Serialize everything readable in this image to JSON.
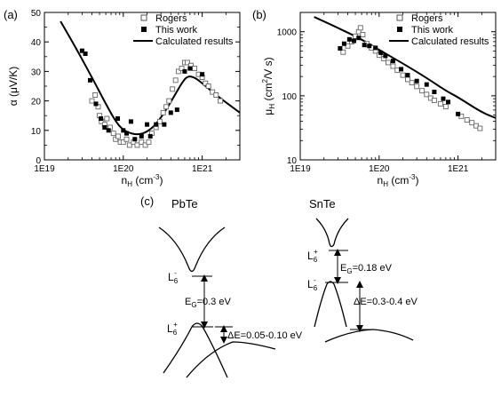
{
  "panel_labels": {
    "a": "(a)",
    "b": "(b)",
    "c": "(c)"
  },
  "legend": {
    "rogers": "Rogers",
    "this_work": "This work",
    "calculated": "Calculated results"
  },
  "chart_data": [
    {
      "panel": "(a)",
      "type": "scatter",
      "xscale": "log",
      "xlim": [
        1e+19,
        3e+21
      ],
      "ylim": [
        0,
        50
      ],
      "xticks": [
        1e+19,
        1e+20,
        1e+21
      ],
      "xtick_labels": [
        "1E19",
        "1E20",
        "1E21"
      ],
      "yticks": [
        0,
        10,
        20,
        30,
        40,
        50
      ],
      "ytick_labels": [
        "0",
        "10",
        "20",
        "30",
        "40",
        "50"
      ],
      "xlabel": {
        "main": "n",
        "sub": "H",
        "tail": " (cm",
        "sup": "-3",
        "end": ")"
      },
      "ylabel": "α (μV/K)",
      "legend_position": "top-right",
      "series": [
        {
          "name": "Rogers",
          "marker": "open-square",
          "points": [
            [
              4e+19,
              20
            ],
            [
              4.4e+19,
              22
            ],
            [
              4.8e+19,
              18
            ],
            [
              5e+19,
              15
            ],
            [
              5.3e+19,
              13
            ],
            [
              5.8e+19,
              12
            ],
            [
              6.2e+19,
              14
            ],
            [
              6.8e+19,
              11
            ],
            [
              7.5e+19,
              9
            ],
            [
              8e+19,
              7
            ],
            [
              8.6e+19,
              8
            ],
            [
              9.2e+19,
              6
            ],
            [
              1e+20,
              6
            ],
            [
              1.1e+20,
              7
            ],
            [
              1.2e+20,
              5
            ],
            [
              1.35e+20,
              6
            ],
            [
              1.5e+20,
              5
            ],
            [
              1.7e+20,
              6
            ],
            [
              1.9e+20,
              5
            ],
            [
              2.1e+20,
              6
            ],
            [
              2.3e+20,
              9
            ],
            [
              2.6e+20,
              11
            ],
            [
              2.9e+20,
              13
            ],
            [
              3.2e+20,
              16
            ],
            [
              3.5e+20,
              18
            ],
            [
              3.8e+20,
              20
            ],
            [
              4.2e+20,
              24
            ],
            [
              4.6e+20,
              27
            ],
            [
              5e+20,
              30
            ],
            [
              5.5e+20,
              31
            ],
            [
              6e+20,
              33
            ],
            [
              6.5e+20,
              33
            ],
            [
              7.2e+20,
              32
            ],
            [
              8e+20,
              31
            ],
            [
              9e+20,
              29
            ],
            [
              1e+21,
              28
            ],
            [
              1.1e+21,
              26
            ],
            [
              1.2e+21,
              25
            ],
            [
              1.35e+21,
              23
            ],
            [
              1.5e+21,
              22
            ],
            [
              1.7e+21,
              20
            ]
          ]
        },
        {
          "name": "This work",
          "marker": "filled-square",
          "points": [
            [
              3e+19,
              37
            ],
            [
              3.3e+19,
              36
            ],
            [
              3.8e+19,
              27
            ],
            [
              4.5e+19,
              19
            ],
            [
              5.2e+19,
              14
            ],
            [
              5.8e+19,
              11
            ],
            [
              6.5e+19,
              10
            ],
            [
              8.5e+19,
              14
            ],
            [
              1e+20,
              10
            ],
            [
              1.1e+20,
              9
            ],
            [
              1.25e+20,
              13
            ],
            [
              1.4e+20,
              7
            ],
            [
              1.7e+20,
              8
            ],
            [
              2e+20,
              12
            ],
            [
              2.2e+20,
              8
            ],
            [
              2.6e+20,
              12
            ],
            [
              3.3e+20,
              12
            ],
            [
              4e+20,
              16
            ],
            [
              4.8e+20,
              17
            ],
            [
              6e+20,
              30
            ],
            [
              7e+20,
              31
            ],
            [
              1e+21,
              29
            ]
          ]
        }
      ],
      "curve": {
        "name": "Calculated results",
        "points": [
          [
            1.6e+19,
            47
          ],
          [
            2.5e+19,
            38
          ],
          [
            4e+19,
            28
          ],
          [
            6e+19,
            19
          ],
          [
            8e+19,
            13
          ],
          [
            1e+20,
            10
          ],
          [
            1.3e+20,
            8.8
          ],
          [
            1.6e+20,
            8.6
          ],
          [
            2e+20,
            9.5
          ],
          [
            2.6e+20,
            12
          ],
          [
            3.5e+20,
            17
          ],
          [
            4.5e+20,
            22
          ],
          [
            5.5e+20,
            26
          ],
          [
            6.5e+20,
            28.5
          ],
          [
            8e+20,
            28
          ],
          [
            1e+21,
            26
          ],
          [
            1.5e+21,
            22
          ],
          [
            2e+21,
            19.5
          ],
          [
            3e+21,
            16
          ]
        ]
      }
    },
    {
      "panel": "(b)",
      "type": "scatter",
      "xscale": "log",
      "yscale": "log",
      "xlim": [
        1e+19,
        3e+21
      ],
      "ylim": [
        10,
        2000
      ],
      "xticks": [
        1e+19,
        1e+20,
        1e+21
      ],
      "xtick_labels": [
        "1E19",
        "1E20",
        "1E21"
      ],
      "yticks": [
        10,
        100,
        1000
      ],
      "ytick_labels": [
        "10",
        "100",
        "1000"
      ],
      "xlabel": {
        "main": "n",
        "sub": "H",
        "tail": " (cm",
        "sup": "-3",
        "end": ")"
      },
      "ylabel": "μH (cm²/V s)",
      "legend_position": "top-right",
      "series": [
        {
          "name": "Rogers",
          "marker": "open-square",
          "points": [
            [
              3.5e+19,
              480
            ],
            [
              4e+19,
              600
            ],
            [
              4.5e+19,
              700
            ],
            [
              5e+19,
              850
            ],
            [
              5.5e+19,
              1000
            ],
            [
              5.8e+19,
              1150
            ],
            [
              6.2e+19,
              900
            ],
            [
              7e+19,
              650
            ],
            [
              8e+19,
              560
            ],
            [
              9e+19,
              500
            ],
            [
              1e+20,
              430
            ],
            [
              1.15e+20,
              380
            ],
            [
              1.3e+20,
              330
            ],
            [
              1.5e+20,
              290
            ],
            [
              1.7e+20,
              250
            ],
            [
              2e+20,
              210
            ],
            [
              2.3e+20,
              180
            ],
            [
              2.6e+20,
              160
            ],
            [
              3e+20,
              140
            ],
            [
              3.5e+20,
              120
            ],
            [
              4e+20,
              105
            ],
            [
              4.5e+20,
              92
            ],
            [
              5e+20,
              85
            ],
            [
              6e+20,
              75
            ],
            [
              7e+20,
              68
            ],
            [
              1.1e+21,
              48
            ],
            [
              1.3e+21,
              42
            ],
            [
              1.5e+21,
              38
            ],
            [
              1.7e+21,
              34
            ],
            [
              1.9e+21,
              31
            ]
          ]
        },
        {
          "name": "This work",
          "marker": "filled-square",
          "points": [
            [
              3.2e+19,
              550
            ],
            [
              3.6e+19,
              650
            ],
            [
              4.2e+19,
              760
            ],
            [
              4.8e+19,
              720
            ],
            [
              5.5e+19,
              800
            ],
            [
              6.5e+19,
              620
            ],
            [
              7.5e+19,
              600
            ],
            [
              9e+19,
              560
            ],
            [
              1.05e+20,
              470
            ],
            [
              1.2e+20,
              420
            ],
            [
              1.5e+20,
              350
            ],
            [
              1.9e+20,
              260
            ],
            [
              2.3e+20,
              210
            ],
            [
              3e+20,
              170
            ],
            [
              4e+20,
              150
            ],
            [
              5e+20,
              115
            ],
            [
              6.5e+20,
              90
            ],
            [
              7.5e+20,
              80
            ],
            [
              1e+21,
              52
            ]
          ]
        }
      ],
      "curve": {
        "name": "Calculated results",
        "points": [
          [
            1.5e+19,
            1700
          ],
          [
            3e+19,
            1150
          ],
          [
            6e+19,
            760
          ],
          [
            1e+20,
            520
          ],
          [
            2e+20,
            320
          ],
          [
            4e+20,
            190
          ],
          [
            7e+20,
            120
          ],
          [
            1e+21,
            95
          ],
          [
            2e+21,
            55
          ],
          [
            3e+21,
            45
          ]
        ]
      }
    }
  ],
  "band_diagram": {
    "pbte": {
      "title": "PbTe",
      "l6_minus": {
        "main": "L",
        "sub": "6",
        "sup": "-"
      },
      "l6_plus": {
        "main": "L",
        "sub": "6",
        "sup": "+"
      },
      "eg": {
        "main": "E",
        "sub": "G",
        "tail": "=0.3 eV"
      },
      "de": "ΔE=0.05-0.10 eV"
    },
    "snte": {
      "title": "SnTe",
      "l6_plus": {
        "main": "L",
        "sub": "6",
        "sup": "+"
      },
      "l6_minus": {
        "main": "L",
        "sub": "6",
        "sup": "-"
      },
      "eg": {
        "main": "E",
        "sub": "G",
        "tail": "=0.18 eV"
      },
      "de": "ΔE=0.3-0.4 eV"
    }
  }
}
